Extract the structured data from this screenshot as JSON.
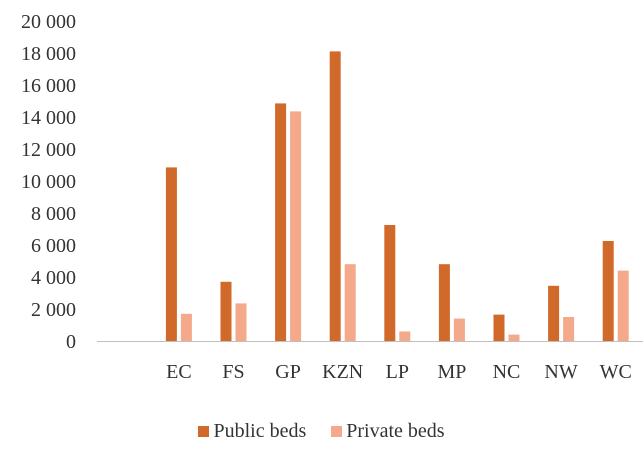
{
  "chart_data": {
    "type": "bar",
    "categories": [
      "",
      "EC",
      "FS",
      "GP",
      "KZN",
      "LP",
      "MP",
      "NC",
      "NW",
      "WC"
    ],
    "series": [
      {
        "name": "Public beds",
        "color": "#d0692a",
        "values": [
          null,
          10850,
          3700,
          14850,
          18100,
          7250,
          4800,
          1650,
          3450,
          6250
        ]
      },
      {
        "name": "Private beds",
        "color": "#f4a98a",
        "values": [
          null,
          1700,
          2350,
          14350,
          4800,
          600,
          1400,
          400,
          1500,
          4400
        ]
      }
    ],
    "ylim": [
      0,
      20000
    ],
    "yticks": [
      "0",
      "2 000",
      "4 000",
      "6 000",
      "8 000",
      "10 000",
      "12 000",
      "14 000",
      "16 000",
      "18 000",
      "20 000"
    ],
    "ytick_values": [
      0,
      2000,
      4000,
      6000,
      8000,
      10000,
      12000,
      14000,
      16000,
      18000,
      20000
    ],
    "grid": false,
    "legend_position": "bottom",
    "axis_color": "#bfbfbf"
  }
}
